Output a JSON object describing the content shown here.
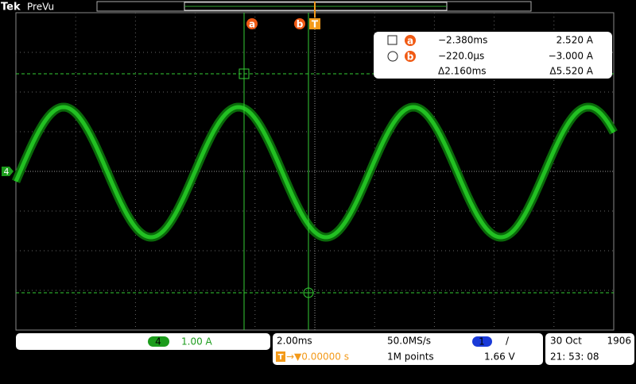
{
  "header": {
    "brand": "Tek",
    "mode": "PreVu"
  },
  "markers": {
    "cursor_a": "a",
    "cursor_b": "b",
    "trigger": "T",
    "channel": "4"
  },
  "readout": {
    "rows": [
      {
        "icon": "a",
        "time": "−2.380ms",
        "value": "2.520 A"
      },
      {
        "icon": "b",
        "time": "−220.0µs",
        "value": "−3.000 A"
      },
      {
        "time": "Δ2.160ms",
        "value": "Δ5.520 A"
      }
    ]
  },
  "channel": {
    "number": "4",
    "scale": "1.00 A"
  },
  "timebase": {
    "scale": "2.00ms",
    "sample_rate": "50.0MS/s",
    "trigger_source": "1",
    "trigger_slope": "/",
    "trigger_icon": "T",
    "trigger_position": "→▼0.00000 s",
    "record_length": "1M points",
    "trigger_level": "1.66 V"
  },
  "datetime": {
    "date": "30 Oct",
    "year": "1906",
    "time": "21: 53: 08"
  }
}
